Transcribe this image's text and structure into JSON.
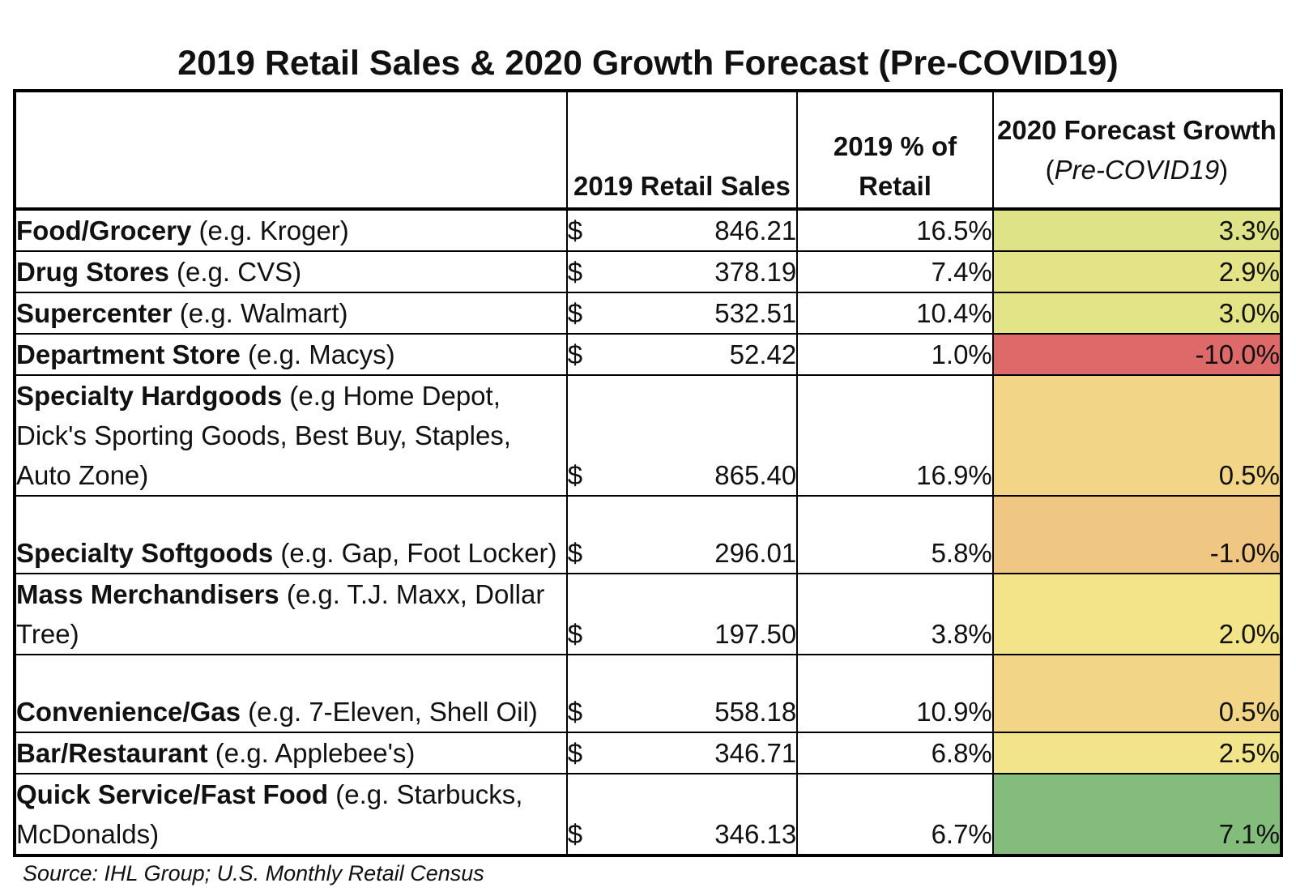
{
  "chart_data": {
    "type": "table",
    "title": "2019 Retail Sales & 2020 Growth Forecast (Pre-COVID19)",
    "columns": {
      "category": "",
      "sales": "2019 Retail Sales",
      "pct": "2019 % of Retail",
      "growth_line1": "2020 Forecast Growth",
      "growth_paren_open": "(",
      "growth_paren_text": "Pre-COVID19",
      "growth_paren_close": ")"
    },
    "rows": [
      {
        "name": "Food/Grocery",
        "example": " (e.g. Kroger)",
        "dollar": "$",
        "sales": "846.21",
        "pct": "16.5%",
        "growth": "3.3%",
        "growth_value": 3.3,
        "color": "#dfe387"
      },
      {
        "name": "Drug Stores",
        "example": " (e.g. CVS)",
        "dollar": "$",
        "sales": "378.19",
        "pct": "7.4%",
        "growth": "2.9%",
        "growth_value": 2.9,
        "color": "#e5e388"
      },
      {
        "name": "Supercenter",
        "example": " (e.g. Walmart)",
        "dollar": "$",
        "sales": "532.51",
        "pct": "10.4%",
        "growth": "3.0%",
        "growth_value": 3.0,
        "color": "#e3e388"
      },
      {
        "name": "Department Store",
        "example": " (e.g. Macys)",
        "dollar": "$",
        "sales": "52.42",
        "pct": "1.0%",
        "growth": "-10.0%",
        "growth_value": -10.0,
        "color": "#dd6a69"
      },
      {
        "name": "Specialty Hardgoods",
        "example": " (e.g Home Depot, Dick's Sporting Goods, Best Buy, Staples, Auto Zone)",
        "dollar": "$",
        "sales": "865.40",
        "pct": "16.9%",
        "growth": "0.5%",
        "growth_value": 0.5,
        "color": "#f2d586"
      },
      {
        "name": "Specialty Softgoods",
        "example": " (e.g. Gap, Foot Locker)",
        "dollar": "$",
        "sales": "296.01",
        "pct": "5.8%",
        "growth": "-1.0%",
        "growth_value": -1.0,
        "color": "#f0c782"
      },
      {
        "name": "Mass Merchandisers",
        "example": " (e.g. T.J. Maxx, Dollar Tree)",
        "dollar": "$",
        "sales": "197.50",
        "pct": "3.8%",
        "growth": "2.0%",
        "growth_value": 2.0,
        "color": "#f3e48a"
      },
      {
        "name": "Convenience/Gas",
        "example": " (e.g. 7-Eleven, Shell Oil)",
        "dollar": "$",
        "sales": "558.18",
        "pct": "10.9%",
        "growth": "0.5%",
        "growth_value": 0.5,
        "color": "#f2d586"
      },
      {
        "name": "Bar/Restaurant",
        "example": " (e.g. Applebee's)",
        "dollar": "$",
        "sales": "346.71",
        "pct": "6.8%",
        "growth": "2.5%",
        "growth_value": 2.5,
        "color": "#f2e48a"
      },
      {
        "name": "Quick Service/Fast Food",
        "example": " (e.g. Starbucks, McDonalds)",
        "dollar": "$",
        "sales": "346.13",
        "pct": "6.7%",
        "growth": "7.1%",
        "growth_value": 7.1,
        "color": "#84bc7c"
      }
    ]
  },
  "source": "Source: IHL Group; U.S. Monthly Retail Census"
}
